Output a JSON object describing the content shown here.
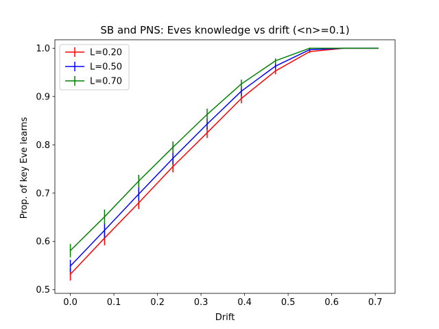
{
  "chart_data": {
    "type": "line",
    "title": "SB and PNS: Eves knowledge vs drift (<n>=0.1)",
    "xlabel": "Drift",
    "ylabel": "Prop. of key Eve learns",
    "xlim": [
      -0.0355,
      0.7455
    ],
    "ylim": [
      0.4925,
      1.0175
    ],
    "xticks": [
      0.0,
      0.1,
      0.2,
      0.3,
      0.4,
      0.5,
      0.6,
      0.7
    ],
    "xtick_labels": [
      "0.0",
      "0.1",
      "0.2",
      "0.3",
      "0.4",
      "0.5",
      "0.6",
      "0.7"
    ],
    "yticks": [
      0.5,
      0.6,
      0.7,
      0.8,
      0.9,
      1.0
    ],
    "ytick_labels": [
      "0.5",
      "0.6",
      "0.7",
      "0.8",
      "0.9",
      "1.0"
    ],
    "grid": false,
    "legend_position": "upper-left",
    "x": [
      0.0,
      0.0785,
      0.157,
      0.2355,
      0.314,
      0.3925,
      0.471,
      0.5495,
      0.628,
      0.7065
    ],
    "series": [
      {
        "name": "L=0.20",
        "color": "#ff0000",
        "values": [
          0.532,
          0.607,
          0.68,
          0.755,
          0.825,
          0.896,
          0.953,
          0.993,
          1.0,
          1.0
        ],
        "errors": [
          0.013,
          0.015,
          0.013,
          0.012,
          0.011,
          0.01,
          0.007,
          0.003,
          0.0,
          0.0
        ]
      },
      {
        "name": "L=0.50",
        "color": "#0000ff",
        "values": [
          0.549,
          0.623,
          0.698,
          0.772,
          0.843,
          0.911,
          0.963,
          0.997,
          1.0,
          1.0
        ],
        "errors": [
          0.013,
          0.015,
          0.014,
          0.012,
          0.011,
          0.01,
          0.006,
          0.002,
          0.0,
          0.0
        ]
      },
      {
        "name": "L=0.70",
        "color": "#008000",
        "values": [
          0.581,
          0.651,
          0.725,
          0.795,
          0.863,
          0.926,
          0.974,
          1.0,
          1.0,
          1.0
        ],
        "errors": [
          0.014,
          0.015,
          0.013,
          0.012,
          0.012,
          0.009,
          0.005,
          0.001,
          0.0,
          0.0
        ]
      }
    ]
  }
}
